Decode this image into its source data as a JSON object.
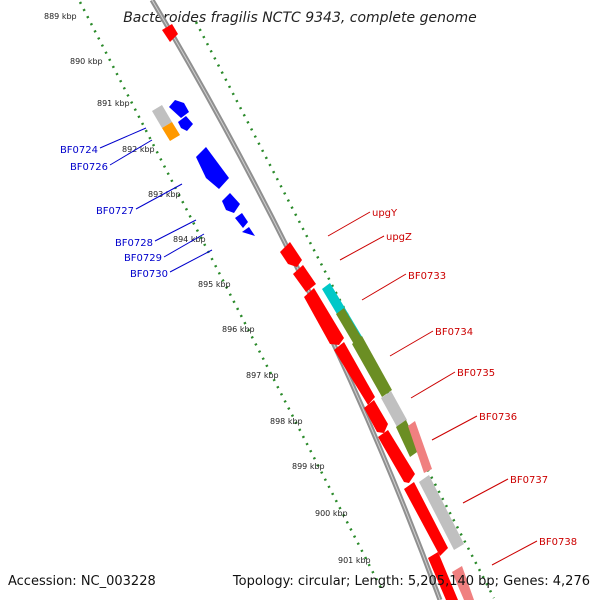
{
  "title": "Bacteroides fragilis NCTC 9343, complete genome",
  "accession_text": "Accession: NC_003228",
  "topology_text": "Topology: circular; Length: 5,205,140 bp; Genes: 4,276",
  "colors": {
    "backbone": "#909090",
    "tick_dots": "#2a8a2a",
    "forward_gene": "#ff0000",
    "reverse_gene": "#0000ff",
    "gray_gene": "#c0c0c0",
    "orange_gene": "#ff9900",
    "cyan_gene": "#00c8c8",
    "olive_gene": "#6b8e23",
    "pink_gene": "#f08080",
    "forward_label": "#cc0000",
    "reverse_label": "#0000cc"
  },
  "scale_ticks": [
    "889 kbp",
    "890 kbp",
    "891 kbp",
    "892 kbp",
    "893 kbp",
    "894 kbp",
    "895 kbp",
    "896 kbp",
    "897 kbp",
    "898 kbp",
    "899 kbp",
    "900 kbp",
    "901 kbp"
  ],
  "left_gene_labels": [
    "BF0724",
    "BF0726",
    "BF0727",
    "BF0728",
    "BF0729",
    "BF0730"
  ],
  "right_gene_labels": [
    "upgY",
    "upgZ",
    "BF0733",
    "BF0734",
    "BF0735",
    "BF0736",
    "BF0737",
    "BF0738"
  ]
}
